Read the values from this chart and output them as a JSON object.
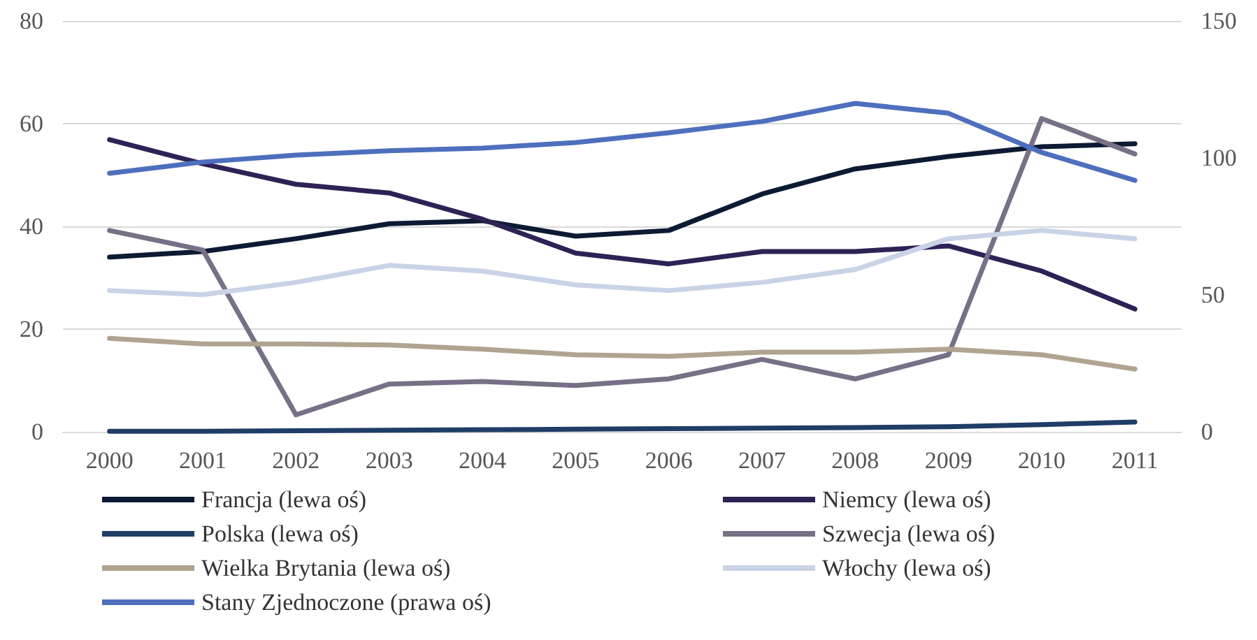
{
  "chart_data": {
    "type": "line",
    "categories": [
      "2000",
      "2001",
      "2002",
      "2003",
      "2004",
      "2005",
      "2006",
      "2007",
      "2008",
      "2009",
      "2010",
      "2011"
    ],
    "ylim": [
      0,
      80
    ],
    "yticks": [
      0,
      20,
      40,
      60,
      80
    ],
    "y2lim": [
      0,
      150
    ],
    "y2ticks": [
      0,
      50,
      100,
      150
    ],
    "grid": "y",
    "legend": "bottom",
    "marker": "none",
    "line_style": "solid",
    "series": [
      {
        "name": "Francja (lewa oś)",
        "color": "#0d1a33",
        "values": [
          34.0,
          35.1,
          37.6,
          40.5,
          41.1,
          38.1,
          39.2,
          46.3,
          51.2,
          53.6,
          55.5,
          56.1
        ]
      },
      {
        "name": "Niemcy (lewa oś)",
        "color": "#2e2255",
        "values": [
          56.9,
          52.2,
          48.2,
          46.5,
          41.4,
          34.8,
          32.7,
          35.1,
          35.1,
          36.2,
          31.3,
          23.9
        ]
      },
      {
        "name": "Polska (lewa oś)",
        "color": "#1f3d66",
        "values": [
          0.1,
          0.1,
          0.2,
          0.3,
          0.4,
          0.5,
          0.6,
          0.7,
          0.8,
          1.0,
          1.4,
          1.9
        ]
      },
      {
        "name": "Szwecja (lewa oś)",
        "color": "#777086",
        "values": [
          39.2,
          35.4,
          3.3,
          9.3,
          9.8,
          9.0,
          10.3,
          14.1,
          10.3,
          15.0,
          61.0,
          54.1
        ]
      },
      {
        "name": "Wielka Brytania (lewa oś)",
        "color": "#b0a490",
        "values": [
          18.2,
          17.1,
          17.1,
          16.9,
          16.1,
          15.0,
          14.7,
          15.5,
          15.5,
          16.1,
          15.0,
          12.2
        ]
      },
      {
        "name": "Włochy (lewa oś)",
        "color": "#c9d3e6",
        "values": [
          27.5,
          26.7,
          29.1,
          32.4,
          31.3,
          28.6,
          27.5,
          29.1,
          31.6,
          37.6,
          39.2,
          37.6
        ]
      },
      {
        "name": "Stany Zjednoczone (prawa oś)",
        "color": "#4e6fbd",
        "axis": "y2",
        "values": [
          94.4,
          98.5,
          101.0,
          102.6,
          103.6,
          105.6,
          109.2,
          113.3,
          119.9,
          116.3,
          102.0,
          91.8
        ]
      }
    ]
  }
}
